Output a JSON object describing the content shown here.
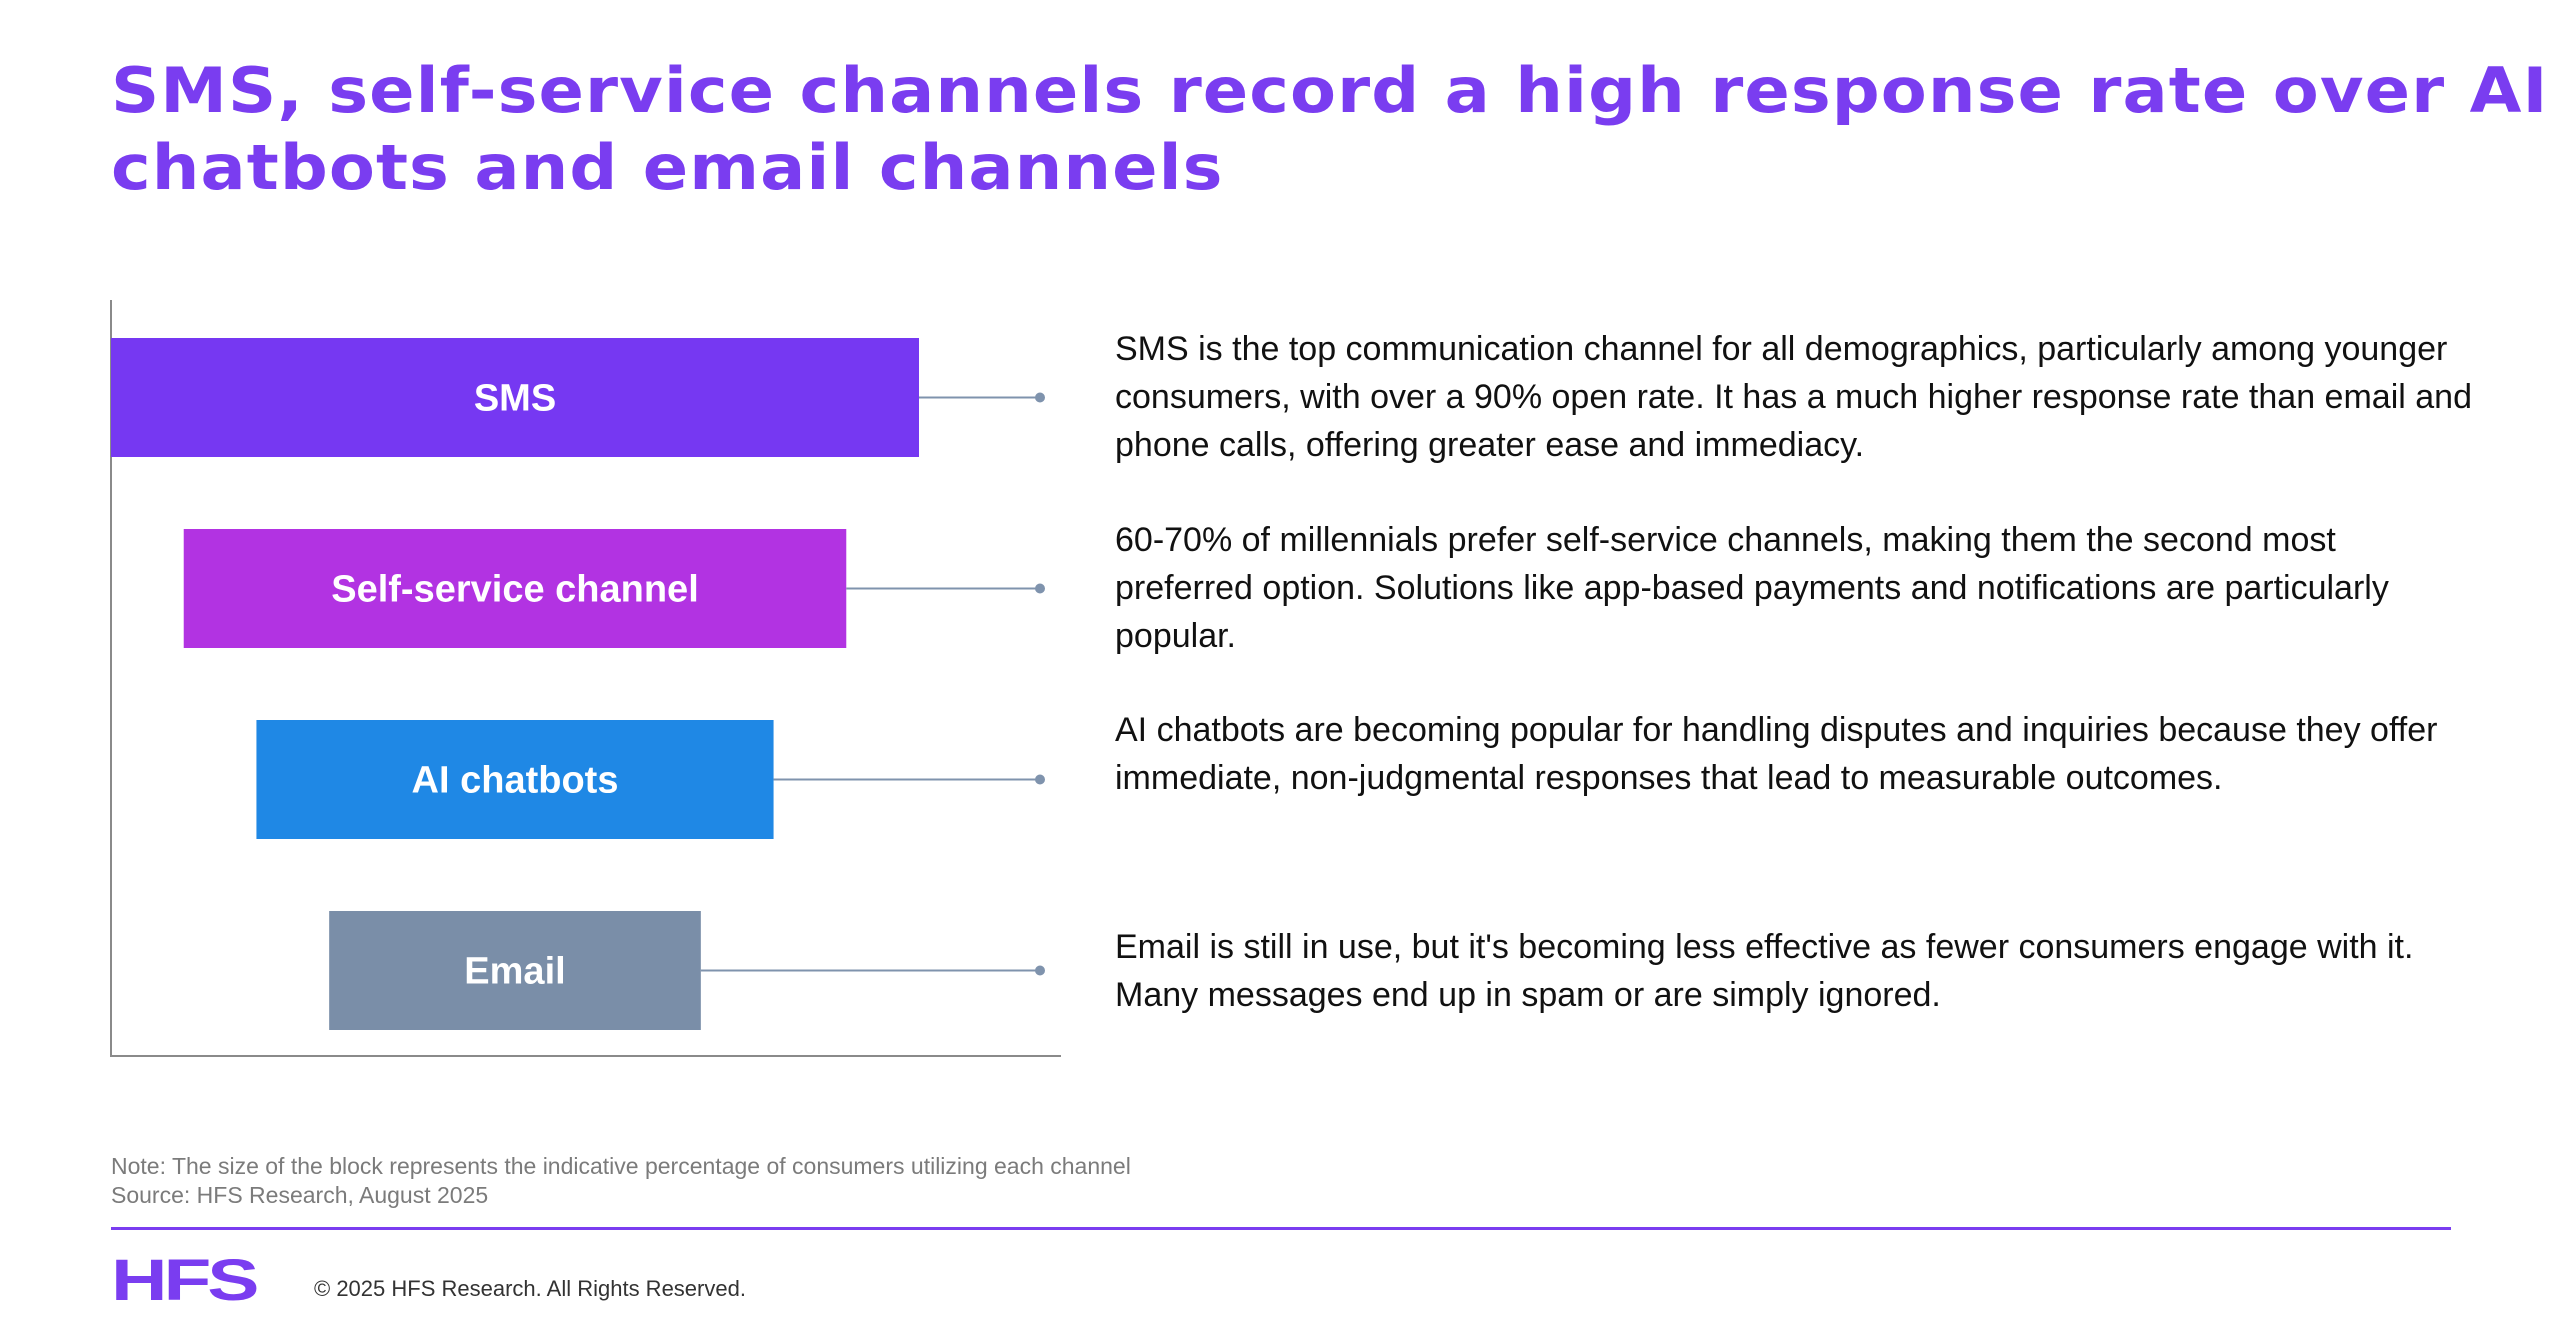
{
  "colors": {
    "brand": "#7a3df0",
    "axis": "#8a8a8a",
    "connector": "#7f93ad",
    "note_text": "#7b7b7b",
    "body_text": "#111111"
  },
  "title": "SMS, self-service channels record a high response rate over AI chatbots and email channels",
  "chart_data": {
    "type": "bar",
    "orientation": "horizontal-centered",
    "title": "SMS, self-service channels record a high response rate over AI chatbots and email channels",
    "categories": [
      "SMS",
      "Self-service channel",
      "AI chatbots",
      "Email"
    ],
    "values": [
      100,
      82,
      64,
      46
    ],
    "value_note": "Relative block size (indicative share of consumers utilizing each channel, SMS = 100)",
    "colors": [
      "#7638f2",
      "#b233e2",
      "#1f88e5",
      "#7a8ea8"
    ],
    "xlabel": "",
    "ylabel": "",
    "xlim": [
      0,
      100
    ],
    "grid": false,
    "legend": "none"
  },
  "descriptions": [
    "SMS is the top communication channel for all demographics, particularly among younger consumers, with over a 90% open rate. It has a much higher response rate than email and phone calls, offering greater ease and immediacy.",
    "60-70% of millennials prefer self-service channels, making them the second most preferred option. Solutions like app-based payments and notifications are particularly popular.",
    "AI chatbots are becoming popular for handling disputes and inquiries because they offer immediate, non-judgmental responses that lead to measurable outcomes.",
    "Email is still in use, but it's becoming less effective as fewer consumers engage with it. Many messages end up in spam or are simply ignored."
  ],
  "footer": {
    "note": "Note: The size of the block represents the indicative percentage of consumers utilizing each channel",
    "source": "Source: HFS Research, August 2025",
    "logo": "HFS",
    "copyright": "© 2025 HFS Research. All Rights Reserved."
  }
}
